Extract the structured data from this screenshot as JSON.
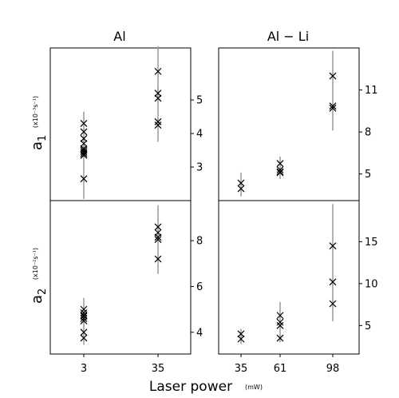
{
  "figure": {
    "xlabel_main": "Laser power",
    "xlabel_unit": "(mW)",
    "row_labels": [
      {
        "symbol": "a",
        "sub": "1",
        "unit": "(x10⁻³s⁻¹)"
      },
      {
        "symbol": "a",
        "sub": "2",
        "unit": "(x10⁻²s⁻¹)"
      }
    ],
    "columns": [
      "Al",
      "Al − Li"
    ]
  },
  "chart_data": [
    {
      "type": "scatter",
      "title": "Al",
      "row": "a1",
      "x_ticks": [
        "3",
        "35"
      ],
      "y_ticks": [
        3,
        4,
        5
      ],
      "ylim": [
        2.0,
        6.55
      ],
      "series": [
        {
          "x": "3",
          "y": [
            4.3,
            4.05,
            3.85,
            3.7,
            3.55,
            3.5,
            3.45,
            3.4,
            3.35,
            2.65
          ],
          "err_y": [
            3.9,
            3.55,
            2.05,
            4.65
          ]
        },
        {
          "x": "35",
          "y": [
            5.85,
            5.2,
            5.05,
            4.35,
            4.25
          ],
          "err_y": [
            5.1,
            6.6,
            3.75,
            5.35
          ]
        }
      ]
    },
    {
      "type": "scatter",
      "title": "Al − Li",
      "row": "a1",
      "x_ticks": [
        "61",
        "98"
      ],
      "y_ticks": [
        5,
        8,
        11
      ],
      "ylim": [
        3.1,
        14.0
      ],
      "series": [
        {
          "x": "35",
          "y": [
            4.35,
            3.95
          ],
          "err_y": [
            3.4,
            5.1
          ]
        },
        {
          "x": "61",
          "y": [
            5.75,
            5.3,
            5.15,
            5.1
          ],
          "err_y": [
            4.65,
            6.25
          ]
        },
        {
          "x": "98",
          "y": [
            12.0,
            9.85,
            9.7
          ],
          "err_y": [
            8.1,
            13.8
          ]
        }
      ]
    },
    {
      "type": "scatter",
      "row": "a2",
      "x_ticks": [
        "3",
        "35"
      ],
      "y_ticks": [
        4,
        6,
        8
      ],
      "ylim": [
        3.05,
        9.75
      ],
      "series": [
        {
          "x": "3",
          "y": [
            5.0,
            4.85,
            4.75,
            4.7,
            4.6,
            4.5,
            4.0,
            3.75
          ],
          "err_y": [
            3.45,
            5.5
          ]
        },
        {
          "x": "35",
          "y": [
            8.6,
            8.35,
            8.15,
            8.05,
            7.2
          ],
          "err_y": [
            6.55,
            9.55
          ]
        }
      ]
    },
    {
      "type": "scatter",
      "row": "a2",
      "x_ticks": [
        "35",
        "61",
        "98"
      ],
      "y_ticks": [
        5,
        10,
        15
      ],
      "ylim": [
        1.6,
        19.9
      ],
      "series": [
        {
          "x": "35",
          "y": [
            4.0,
            3.4
          ],
          "err_y": [
            2.8,
            4.6
          ]
        },
        {
          "x": "61",
          "y": [
            6.2,
            5.4,
            5.0,
            3.5
          ],
          "err_y": [
            3.0,
            7.8
          ]
        },
        {
          "x": "98",
          "y": [
            14.5,
            10.2,
            7.6
          ],
          "err_y": [
            5.5,
            19.5
          ]
        }
      ]
    }
  ]
}
